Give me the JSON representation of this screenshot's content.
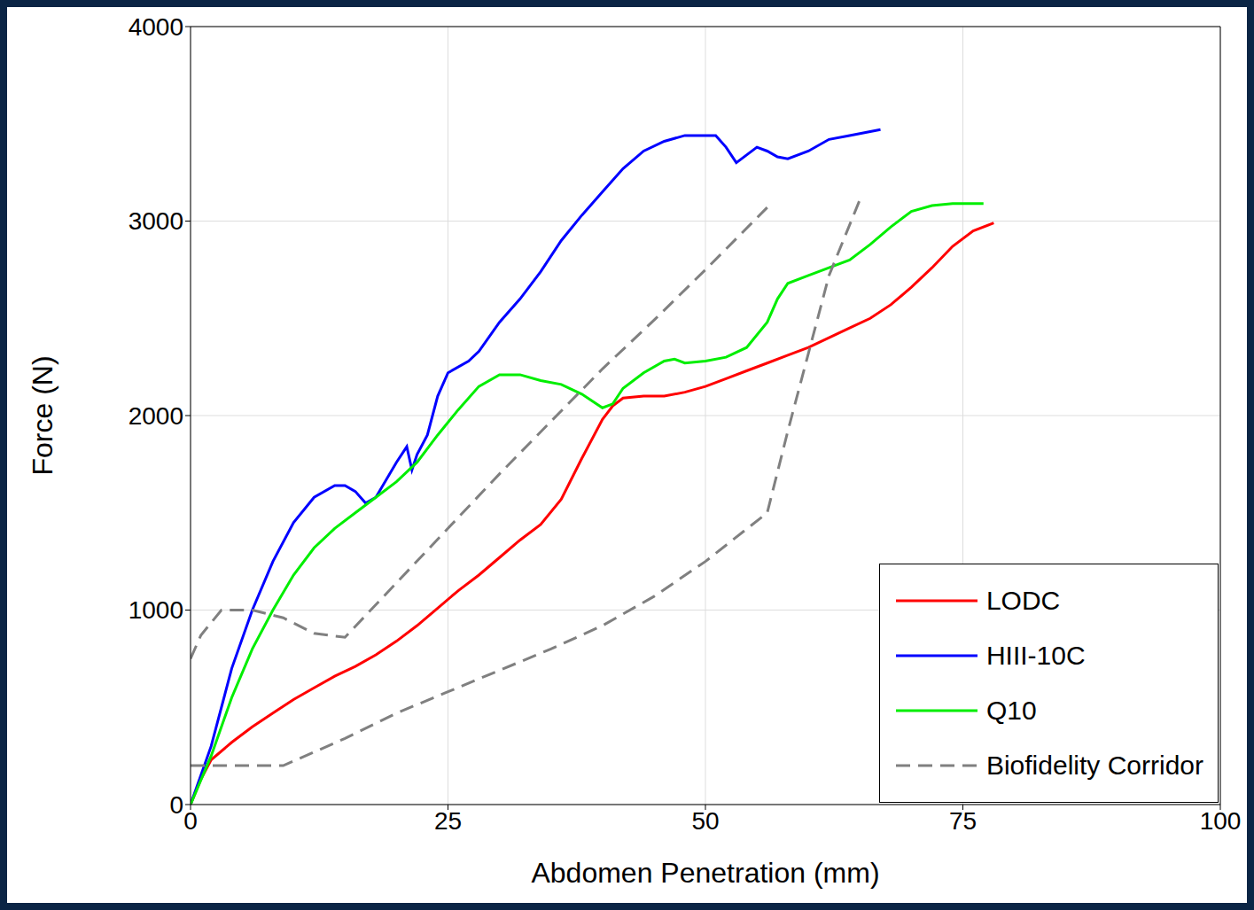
{
  "chart_data": {
    "type": "line",
    "x_label": "Abdomen Penetration (mm)",
    "y_label": "Force (N)",
    "xlim": [
      0,
      100
    ],
    "xticks": [
      0,
      25,
      50,
      75,
      100
    ],
    "ylim": [
      0,
      4000
    ],
    "yticks": [
      0,
      1000,
      2000,
      3000,
      4000
    ],
    "grid": true,
    "legend": "lower right",
    "series": [
      {
        "name": "LODC",
        "color": "#ff0000",
        "line_style": "solid",
        "x": [
          0,
          1,
          2,
          4,
          6,
          8,
          10,
          12,
          14,
          16,
          18,
          20,
          22,
          24,
          26,
          28,
          30,
          32,
          34,
          36,
          38,
          40,
          41,
          42,
          44,
          46,
          48,
          50,
          52,
          54,
          56,
          58,
          60,
          62,
          64,
          66,
          68,
          70,
          72,
          74,
          76,
          78
        ],
        "values": [
          0,
          130,
          230,
          320,
          400,
          470,
          540,
          600,
          660,
          710,
          770,
          840,
          920,
          1010,
          1100,
          1180,
          1270,
          1360,
          1440,
          1570,
          1780,
          1980,
          2050,
          2090,
          2100,
          2100,
          2120,
          2150,
          2190,
          2230,
          2270,
          2310,
          2350,
          2400,
          2450,
          2500,
          2570,
          2660,
          2760,
          2870,
          2950,
          2990
        ]
      },
      {
        "name": "HIII-10C",
        "color": "#0000ff",
        "line_style": "solid",
        "x": [
          0,
          2,
          4,
          6,
          8,
          10,
          12,
          14,
          15,
          16,
          17,
          18,
          20,
          21,
          21.5,
          22,
          23,
          24,
          25,
          27,
          28,
          30,
          32,
          34,
          36,
          38,
          40,
          42,
          44,
          46,
          48,
          50,
          51,
          52,
          53,
          54,
          55,
          56,
          57,
          58,
          60,
          62,
          64,
          66,
          67
        ],
        "values": [
          0,
          300,
          700,
          1000,
          1250,
          1450,
          1580,
          1640,
          1640,
          1610,
          1550,
          1580,
          1760,
          1840,
          1720,
          1800,
          1900,
          2100,
          2220,
          2280,
          2330,
          2480,
          2600,
          2740,
          2900,
          3030,
          3150,
          3270,
          3360,
          3410,
          3440,
          3440,
          3440,
          3380,
          3300,
          3340,
          3380,
          3360,
          3330,
          3320,
          3360,
          3420,
          3440,
          3460,
          3470
        ]
      },
      {
        "name": "Q10",
        "color": "#00ee00",
        "line_style": "solid",
        "x": [
          0,
          2,
          4,
          6,
          8,
          10,
          12,
          14,
          16,
          18,
          20,
          22,
          24,
          26,
          28,
          30,
          32,
          34,
          36,
          38,
          40,
          41,
          42,
          44,
          46,
          47,
          48,
          50,
          52,
          54,
          56,
          57,
          58,
          60,
          62,
          64,
          66,
          68,
          70,
          72,
          74,
          77
        ],
        "values": [
          0,
          250,
          550,
          800,
          1000,
          1180,
          1320,
          1420,
          1500,
          1580,
          1660,
          1760,
          1900,
          2030,
          2150,
          2210,
          2210,
          2180,
          2160,
          2110,
          2040,
          2060,
          2140,
          2220,
          2280,
          2290,
          2270,
          2280,
          2300,
          2350,
          2480,
          2600,
          2680,
          2720,
          2760,
          2800,
          2880,
          2970,
          3050,
          3080,
          3090,
          3090
        ]
      },
      {
        "name": "Biofidelity Corridor",
        "color": "#808080",
        "line_style": "dashed",
        "x": [
          0,
          1,
          3,
          6,
          9,
          12,
          15,
          20,
          25,
          30,
          35,
          40,
          45,
          50,
          56,
          null,
          0,
          9,
          15,
          20,
          25,
          30,
          35,
          40,
          45,
          50,
          56,
          58,
          60,
          62,
          65
        ],
        "values": [
          750,
          870,
          1000,
          1000,
          960,
          880,
          860,
          1140,
          1420,
          1700,
          1970,
          2240,
          2490,
          2750,
          3070,
          null,
          200,
          200,
          340,
          470,
          580,
          690,
          800,
          920,
          1070,
          1250,
          1500,
          1920,
          2320,
          2720,
          3110
        ]
      }
    ]
  }
}
